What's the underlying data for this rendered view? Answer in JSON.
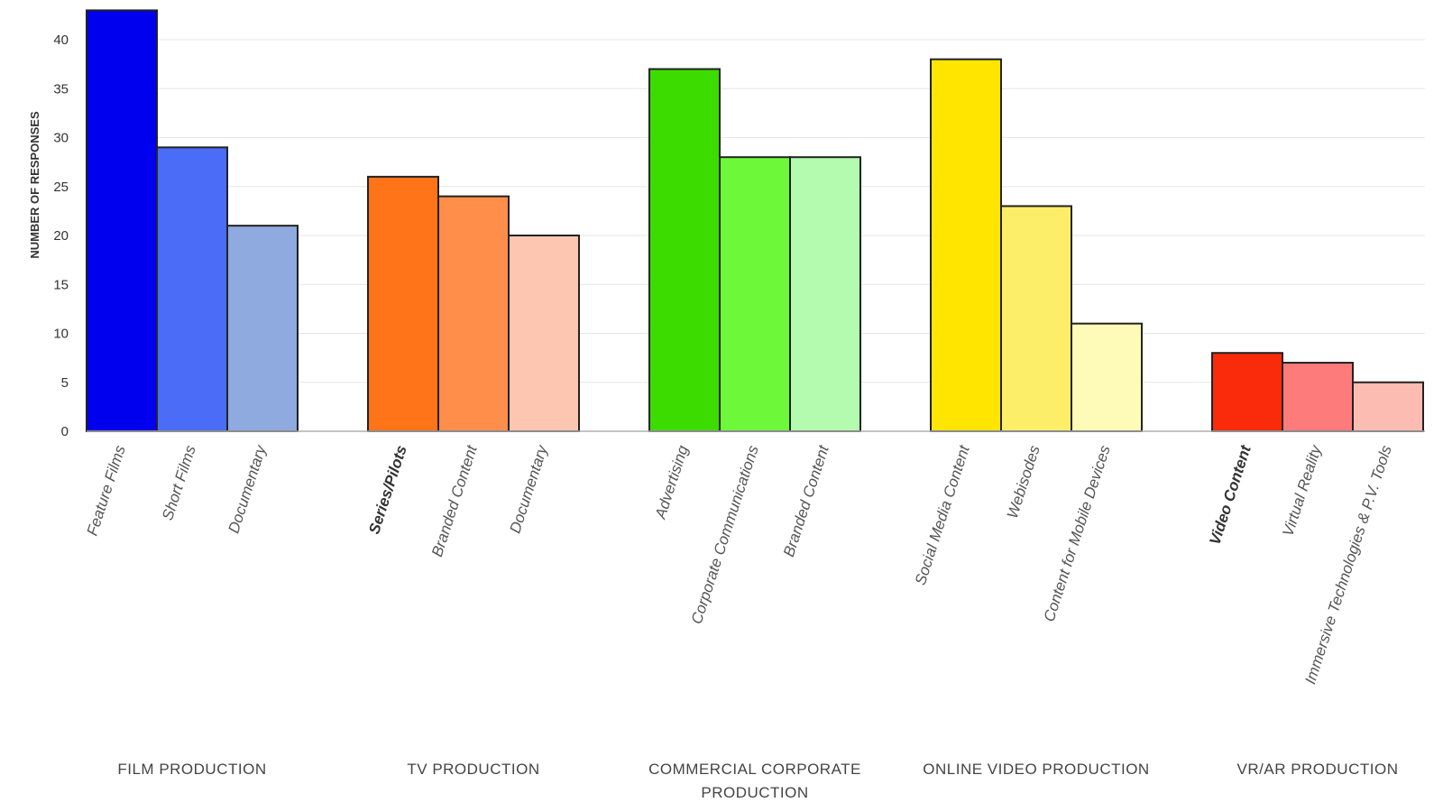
{
  "chart_data": {
    "type": "bar",
    "ylabel": "NUMBER OF RESPONSES",
    "xlabel": "",
    "ylim": [
      0,
      43
    ],
    "yticks": [
      0,
      5,
      10,
      15,
      20,
      25,
      30,
      35,
      40
    ],
    "grid": true,
    "groups": [
      {
        "name": "FILM PRODUCTION",
        "bars": [
          {
            "label": "Feature Films",
            "value": 43,
            "color": "#0000ee"
          },
          {
            "label": "Short Films",
            "value": 29,
            "color": "#4a6cf7"
          },
          {
            "label": "Documentary",
            "value": 21,
            "color": "#8eaadf"
          }
        ]
      },
      {
        "name": "TV PRODUCTION",
        "bars": [
          {
            "label": "Series/Pilots",
            "value": 26,
            "color": "#ff7418",
            "bold": true
          },
          {
            "label": "Branded Content",
            "value": 24,
            "color": "#ff8e4a"
          },
          {
            "label": "Documentary",
            "value": 20,
            "color": "#fcc6b0"
          }
        ]
      },
      {
        "name": "COMMERCIAL CORPORATE PRODUCTION",
        "name_lines": [
          "COMMERCIAL CORPORATE",
          "PRODUCTION"
        ],
        "bars": [
          {
            "label": "Advertising",
            "value": 37,
            "color": "#3ddc00"
          },
          {
            "label": "Corporate Communications",
            "value": 28,
            "color": "#6ef83a"
          },
          {
            "label": "Branded Content",
            "value": 28,
            "color": "#b4fbb0"
          }
        ]
      },
      {
        "name": "ONLINE VIDEO PRODUCTION",
        "bars": [
          {
            "label": "Social Media Content",
            "value": 38,
            "color": "#ffe500"
          },
          {
            "label": "Webisodes",
            "value": 23,
            "color": "#fdee6a"
          },
          {
            "label": "Content for Mobile Devices",
            "value": 11,
            "color": "#fefab8"
          }
        ]
      },
      {
        "name": "VR/AR PRODUCTION",
        "bars": [
          {
            "label": "Video Content",
            "value": 8,
            "color": "#fa2b0a",
            "bold": true
          },
          {
            "label": "Virtual Reality",
            "value": 7,
            "color": "#fe7b7b"
          },
          {
            "label": "Immersive Technologies & P.V. Tools",
            "value": 5,
            "color": "#fcbcb2"
          }
        ]
      }
    ]
  }
}
